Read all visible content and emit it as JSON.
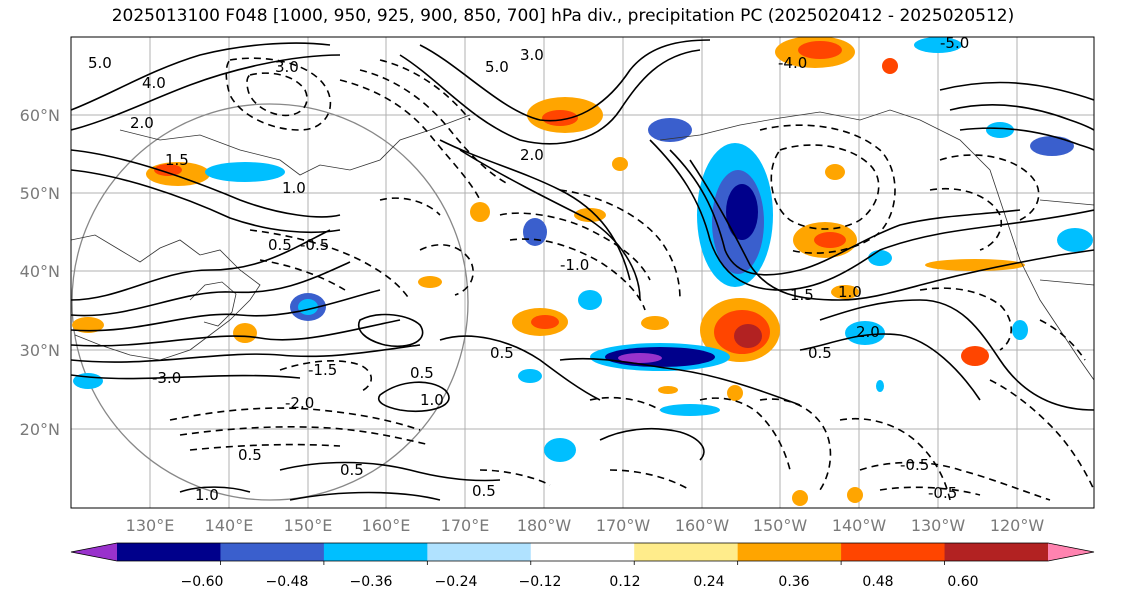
{
  "title": "2025013100 F048 [1000, 950, 925, 900, 850, 700] hPa div., precipitation PC (2025020412 - 2025020512)",
  "map": {
    "lat_ticks": [
      "60°N",
      "50°N",
      "40°N",
      "30°N",
      "20°N"
    ],
    "lon_ticks": [
      "130°E",
      "140°E",
      "150°E",
      "160°E",
      "170°E",
      "180°W",
      "170°W",
      "160°W",
      "150°W",
      "140°W",
      "130°W",
      "120°W"
    ]
  },
  "colorbar": {
    "colors": [
      "#9932cc",
      "#00008b",
      "#3a5fcd",
      "#00bfff",
      "#b0e2ff",
      "#ffffff",
      "#ffec8b",
      "#ffa500",
      "#ff4500",
      "#b22222",
      "#ff83b0"
    ],
    "tick_labels": [
      "−0.60",
      "−0.48",
      "−0.36",
      "−0.24",
      "−0.12",
      "0.12",
      "0.24",
      "0.36",
      "0.48",
      "0.60"
    ]
  },
  "contour_labels": [
    "5.0",
    "4.0",
    "3.0",
    "2.0",
    "1.5",
    "1.0",
    "0.5",
    "-0.5",
    "-1.0",
    "-1.5",
    "-2.0",
    "-3.0",
    "-4.0",
    "-5.0"
  ]
}
